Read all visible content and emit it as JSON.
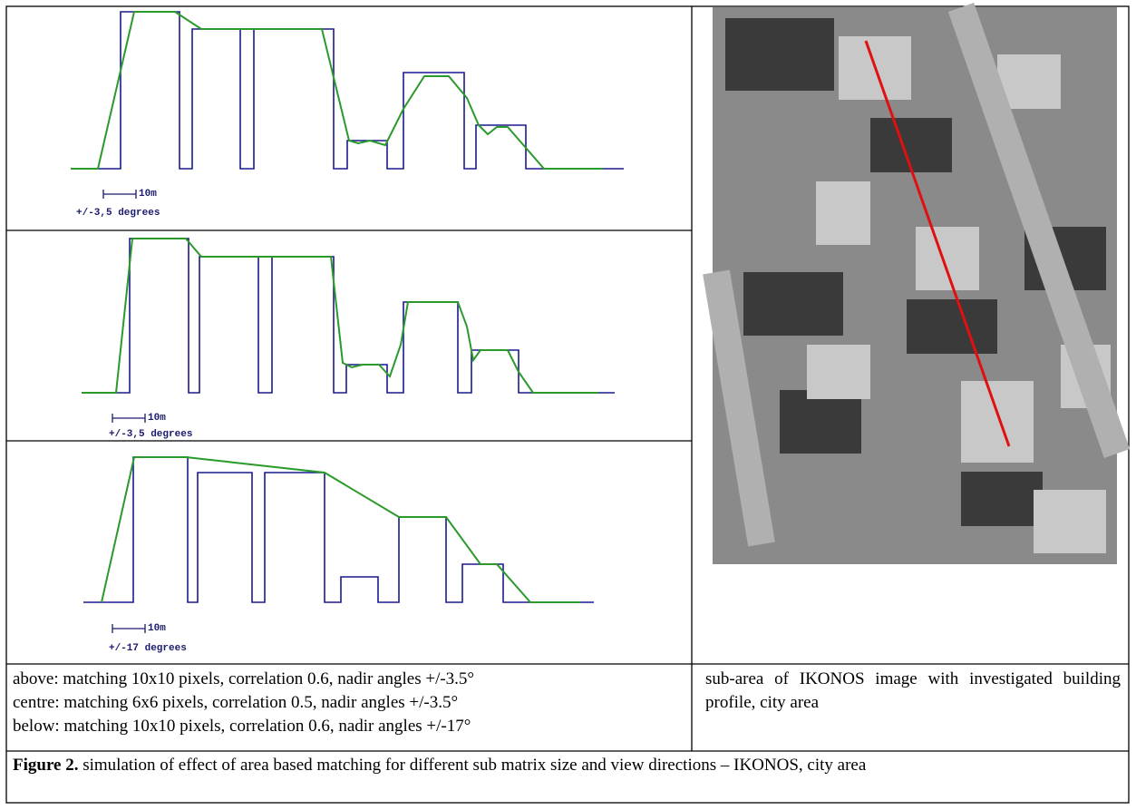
{
  "panels": [
    {
      "scale": "10m",
      "angle": "+/-3,5 degrees"
    },
    {
      "scale": "10m",
      "angle": "+/-3,5 degrees"
    },
    {
      "scale": "10m",
      "angle": "+/-17 degrees"
    }
  ],
  "captions": {
    "left": [
      "above: matching 10x10 pixels, correlation 0.6, nadir angles +/-3.5°",
      "centre: matching 6x6 pixels, correlation 0.5, nadir angles +/-3.5°",
      "below: matching 10x10 pixels, correlation 0.6, nadir angles +/-17°"
    ],
    "right": "sub-area of IKONOS image with investigated building profile, city area"
  },
  "figure": {
    "label": "Figure 2.",
    "text": "simulation of effect of area based matching for different sub matrix size and view directions – IKONOS, city area"
  }
}
